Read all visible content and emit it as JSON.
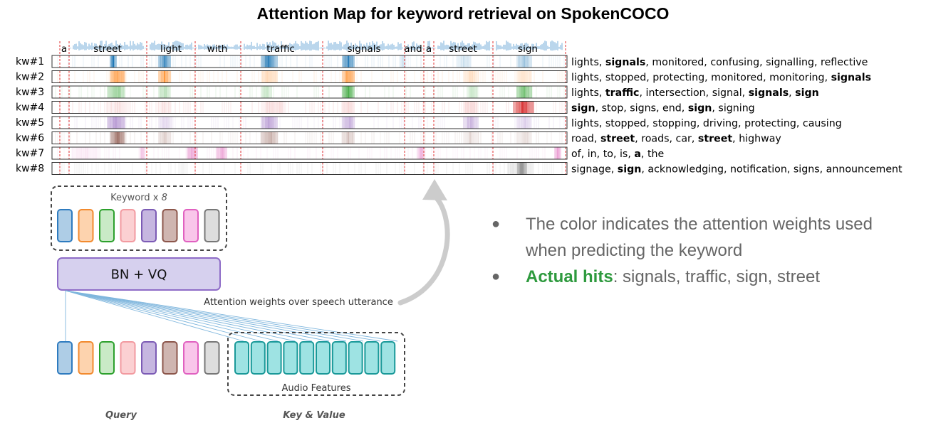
{
  "title": "Attention Map for keyword retrieval on SpokenCOCO",
  "words": [
    "a",
    "street",
    "light",
    "with",
    "traffic",
    "signals",
    "and",
    "a",
    "street",
    "sign"
  ],
  "rows": [
    {
      "label": "kw#1",
      "color": "#1f77b4",
      "retrieved": [
        [
          "lights",
          false
        ],
        [
          "signals",
          true
        ],
        [
          "monitored",
          false
        ],
        [
          "confusing",
          false
        ],
        [
          "signalling",
          false
        ],
        [
          "reflective",
          false
        ]
      ]
    },
    {
      "label": "kw#2",
      "color": "#ff7f0e",
      "retrieved": [
        [
          "lights",
          false
        ],
        [
          "stopped",
          false
        ],
        [
          "protecting",
          false
        ],
        [
          "monitored",
          false
        ],
        [
          "monitoring",
          false
        ],
        [
          "signals",
          true
        ]
      ]
    },
    {
      "label": "kw#3",
      "color": "#2ca02c",
      "retrieved": [
        [
          "lights",
          false
        ],
        [
          "traffic",
          true
        ],
        [
          "intersection",
          false
        ],
        [
          "signal",
          false
        ],
        [
          "signals",
          true
        ],
        [
          "sign",
          true
        ]
      ]
    },
    {
      "label": "kw#4",
      "color": "#d62728",
      "retrieved": [
        [
          "sign",
          true
        ],
        [
          "stop",
          false
        ],
        [
          "signs",
          false
        ],
        [
          "end",
          false
        ],
        [
          "sign",
          true
        ],
        [
          "signing",
          false
        ]
      ]
    },
    {
      "label": "kw#5",
      "color": "#9467bd",
      "retrieved": [
        [
          "lights",
          false
        ],
        [
          "stopped",
          false
        ],
        [
          "stopping",
          false
        ],
        [
          "driving",
          false
        ],
        [
          "protecting",
          false
        ],
        [
          "causing",
          false
        ]
      ]
    },
    {
      "label": "kw#6",
      "color": "#8c564b",
      "retrieved": [
        [
          "road",
          false
        ],
        [
          "street",
          true
        ],
        [
          "roads",
          false
        ],
        [
          "car",
          false
        ],
        [
          "street",
          true
        ],
        [
          "highway",
          false
        ]
      ]
    },
    {
      "label": "kw#7",
      "color": "#e377c2",
      "retrieved": [
        [
          "of",
          false
        ],
        [
          "in",
          false
        ],
        [
          "to",
          false
        ],
        [
          "is",
          false
        ],
        [
          "a",
          true
        ],
        [
          "the",
          false
        ]
      ]
    },
    {
      "label": "kw#8",
      "color": "#7f7f7f",
      "retrieved": [
        [
          "signage",
          false
        ],
        [
          "sign",
          true
        ],
        [
          "acknowledging",
          false
        ],
        [
          "notification",
          false
        ],
        [
          "signs",
          false
        ],
        [
          "announcement",
          false
        ]
      ]
    }
  ],
  "keyword_box_label": "Keyword x",
  "keyword_count": "8",
  "keyword_colors": [
    {
      "fill": "#aecde6",
      "stroke": "#2e7bbf"
    },
    {
      "fill": "#fdd3ae",
      "stroke": "#f28a2e"
    },
    {
      "fill": "#c9eac6",
      "stroke": "#2ca02c"
    },
    {
      "fill": "#fbd0d2",
      "stroke": "#f29aa0"
    },
    {
      "fill": "#c6b6e0",
      "stroke": "#7c5bb5"
    },
    {
      "fill": "#cfb5b0",
      "stroke": "#8c564b"
    },
    {
      "fill": "#f9c6ea",
      "stroke": "#e060c0"
    },
    {
      "fill": "#dddddd",
      "stroke": "#777777"
    }
  ],
  "bnvq_label": "BN + VQ",
  "attention_caption": "Attention weights over speech utterance",
  "audio_features_label": "Audio Features",
  "audio_color": {
    "fill": "#9ee3e3",
    "stroke": "#1a9999"
  },
  "query_label": "Query",
  "keyvalue_label": "Key & Value",
  "bullets": {
    "b1": "The color indicates the attention weights used when predicting the keyword",
    "b2_highlight": "Actual hits",
    "b2_rest": ": signals, traffic, sign, street"
  }
}
